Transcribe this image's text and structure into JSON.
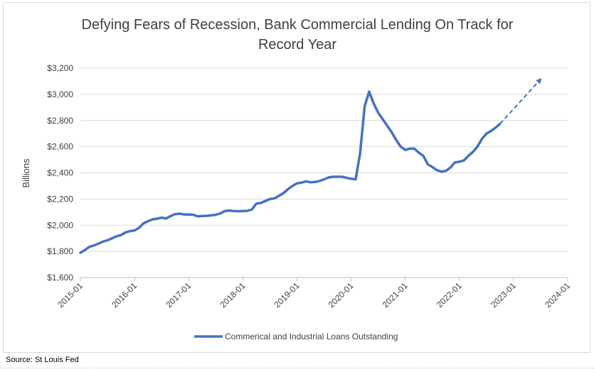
{
  "chart_data": {
    "type": "line",
    "title_lines": [
      "Defying Fears of Recession, Bank Commercial Lending On Track for",
      "Record Year"
    ],
    "ylabel": "Billions",
    "xlabel": "",
    "ylim": [
      1600,
      3200
    ],
    "y_ticks": [
      1600,
      1800,
      2000,
      2200,
      2400,
      2600,
      2800,
      3000,
      3200
    ],
    "y_tick_labels": [
      "$1,600",
      "$1,800",
      "$2,000",
      "$2,200",
      "$2,400",
      "$2,600",
      "$2,800",
      "$3,000",
      "$3,200"
    ],
    "x_ticks": [
      "2015-01",
      "2016-01",
      "2017-01",
      "2018-01",
      "2019-01",
      "2020-01",
      "2021-01",
      "2022-01",
      "2023-01",
      "2024-01"
    ],
    "xlim": [
      "2015-01",
      "2024-01"
    ],
    "grid": "horizontal",
    "legend_position": "bottom",
    "colors": {
      "series": "#4472c4",
      "grid": "#d9d9d9",
      "axis": "#bfbfbf"
    },
    "series": [
      {
        "name": "Commerical and Industrial Loans Outstanding",
        "style": "solid",
        "x": [
          "2015-01",
          "2015-02",
          "2015-03",
          "2015-04",
          "2015-05",
          "2015-06",
          "2015-07",
          "2015-08",
          "2015-09",
          "2015-10",
          "2015-11",
          "2015-12",
          "2016-01",
          "2016-02",
          "2016-03",
          "2016-04",
          "2016-05",
          "2016-06",
          "2016-07",
          "2016-08",
          "2016-09",
          "2016-10",
          "2016-11",
          "2016-12",
          "2017-01",
          "2017-02",
          "2017-03",
          "2017-04",
          "2017-05",
          "2017-06",
          "2017-07",
          "2017-08",
          "2017-09",
          "2017-10",
          "2017-11",
          "2017-12",
          "2018-01",
          "2018-02",
          "2018-03",
          "2018-04",
          "2018-05",
          "2018-06",
          "2018-07",
          "2018-08",
          "2018-09",
          "2018-10",
          "2018-11",
          "2018-12",
          "2019-01",
          "2019-02",
          "2019-03",
          "2019-04",
          "2019-05",
          "2019-06",
          "2019-07",
          "2019-08",
          "2019-09",
          "2019-10",
          "2019-11",
          "2019-12",
          "2020-01",
          "2020-02",
          "2020-03",
          "2020-04",
          "2020-05",
          "2020-06",
          "2020-07",
          "2020-08",
          "2020-09",
          "2020-10",
          "2020-11",
          "2020-12",
          "2021-01",
          "2021-02",
          "2021-03",
          "2021-04",
          "2021-05",
          "2021-06",
          "2021-07",
          "2021-08",
          "2021-09",
          "2021-10",
          "2021-11",
          "2021-12",
          "2022-01",
          "2022-02",
          "2022-03",
          "2022-04",
          "2022-05",
          "2022-06",
          "2022-07",
          "2022-08",
          "2022-09",
          "2022-10"
        ],
        "y": [
          1790,
          1810,
          1835,
          1845,
          1860,
          1875,
          1885,
          1900,
          1915,
          1925,
          1945,
          1955,
          1960,
          1980,
          2015,
          2030,
          2045,
          2050,
          2058,
          2052,
          2070,
          2085,
          2088,
          2082,
          2082,
          2080,
          2068,
          2070,
          2072,
          2075,
          2080,
          2090,
          2108,
          2112,
          2108,
          2107,
          2108,
          2110,
          2120,
          2165,
          2170,
          2185,
          2200,
          2205,
          2225,
          2245,
          2275,
          2300,
          2320,
          2325,
          2335,
          2328,
          2330,
          2338,
          2350,
          2365,
          2370,
          2370,
          2370,
          2362,
          2355,
          2350,
          2550,
          2910,
          3020,
          2930,
          2860,
          2810,
          2760,
          2710,
          2650,
          2600,
          2575,
          2585,
          2585,
          2555,
          2530,
          2465,
          2445,
          2420,
          2410,
          2415,
          2440,
          2480,
          2485,
          2495,
          2530,
          2560,
          2600,
          2660,
          2700,
          2720,
          2745,
          2775
        ]
      },
      {
        "name": "",
        "style": "dashed-arrow",
        "x": [
          "2022-10",
          "2023-07"
        ],
        "y": [
          2775,
          3115
        ]
      }
    ]
  },
  "source": "Source: St Louis Fed"
}
